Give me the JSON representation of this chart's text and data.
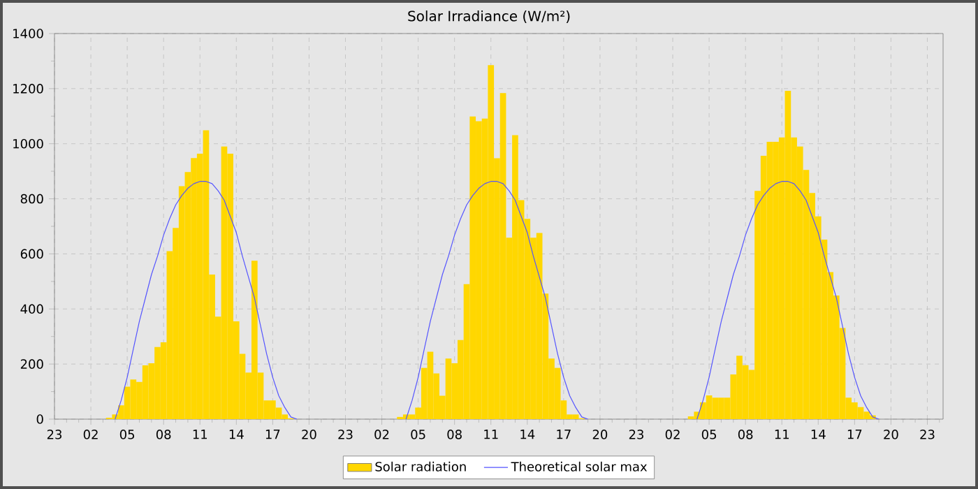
{
  "chart_data": {
    "type": "bar",
    "title": "Solar Irradiance (W/m²)",
    "categories": [
      "23",
      null,
      null,
      null,
      null,
      null,
      "02",
      null,
      null,
      null,
      null,
      null,
      "05",
      null,
      null,
      null,
      null,
      null,
      "08",
      null,
      null,
      null,
      null,
      null,
      "11",
      null,
      null,
      null,
      null,
      null,
      "14",
      null,
      null,
      null,
      null,
      null,
      "17",
      null,
      null,
      null,
      null,
      null,
      "20",
      null,
      null,
      null,
      null,
      null,
      "23",
      null,
      null,
      null,
      null,
      null,
      "02",
      null,
      null,
      null,
      null,
      null,
      "05",
      null,
      null,
      null,
      null,
      null,
      "08",
      null,
      null,
      null,
      null,
      null,
      "11",
      null,
      null,
      null,
      null,
      null,
      "14",
      null,
      null,
      null,
      null,
      null,
      "17",
      null,
      null,
      null,
      null,
      null,
      "20",
      null,
      null,
      null,
      null,
      null,
      "23",
      null,
      null,
      null,
      null,
      null,
      "02",
      null,
      null,
      null,
      null,
      null,
      "05",
      null,
      null,
      null,
      null,
      null,
      "08",
      null,
      null,
      null,
      null,
      null,
      "11",
      null,
      null,
      null,
      null,
      null,
      "14",
      null,
      null,
      null,
      null,
      null,
      "17",
      null,
      null,
      null,
      null,
      null,
      "20",
      null,
      null,
      null,
      null,
      null,
      "23",
      null,
      null
    ],
    "series": [
      {
        "name": "Solar radiation",
        "color": "#ffd700",
        "values": [
          null,
          null,
          null,
          null,
          null,
          null,
          null,
          null,
          null,
          5,
          17,
          50,
          118,
          144,
          135,
          195,
          203,
          262,
          279,
          610,
          694,
          846,
          897,
          948,
          964,
          1049,
          525,
          372,
          990,
          964,
          355,
          237,
          169,
          575,
          169,
          68,
          68,
          42,
          17,
          3,
          null,
          null,
          null,
          null,
          null,
          null,
          null,
          null,
          null,
          null,
          null,
          null,
          null,
          null,
          null,
          null,
          null,
          8,
          17,
          17,
          42,
          186,
          245,
          166,
          85,
          220,
          203,
          287,
          490,
          1099,
          1082,
          1091,
          1285,
          947,
          1184,
          659,
          1031,
          795,
          727,
          659,
          676,
          456,
          220,
          186,
          68,
          17,
          17,
          3,
          null,
          null,
          null,
          null,
          null,
          null,
          null,
          null,
          null,
          null,
          null,
          null,
          null,
          null,
          null,
          null,
          null,
          10,
          27,
          61,
          86,
          78,
          78,
          78,
          162,
          230,
          196,
          179,
          829,
          956,
          1007,
          1007,
          1023,
          1192,
          1023,
          990,
          905,
          821,
          736,
          652,
          534,
          449,
          331,
          78,
          61,
          44,
          27,
          14,
          null,
          null,
          null,
          null,
          null,
          null,
          null,
          null,
          null,
          null,
          null
        ]
      },
      {
        "name": "Theoretical solar max",
        "type": "line",
        "color": "#5555ff",
        "values": [
          null,
          null,
          null,
          null,
          null,
          null,
          null,
          null,
          null,
          null,
          0,
          68,
          152,
          254,
          355,
          440,
          525,
          592,
          668,
          728,
          778,
          812,
          838,
          855,
          863,
          863,
          855,
          829,
          795,
          736,
          677,
          592,
          516,
          440,
          338,
          237,
          152,
          85,
          42,
          8,
          0,
          null,
          null,
          null,
          null,
          null,
          null,
          null,
          null,
          null,
          null,
          null,
          null,
          null,
          null,
          null,
          null,
          null,
          0,
          68,
          152,
          254,
          355,
          440,
          525,
          592,
          668,
          728,
          778,
          812,
          838,
          855,
          863,
          863,
          855,
          829,
          795,
          736,
          677,
          592,
          516,
          440,
          338,
          237,
          152,
          85,
          42,
          8,
          0,
          null,
          null,
          null,
          null,
          null,
          null,
          null,
          null,
          null,
          null,
          null,
          null,
          null,
          null,
          null,
          null,
          null,
          0,
          68,
          152,
          254,
          355,
          440,
          525,
          592,
          668,
          728,
          778,
          812,
          838,
          855,
          863,
          863,
          855,
          829,
          795,
          736,
          677,
          592,
          516,
          440,
          338,
          237,
          152,
          85,
          42,
          8,
          0,
          null,
          null,
          null,
          null,
          null,
          null,
          null,
          null,
          null,
          null
        ]
      }
    ],
    "ylim": [
      0,
      1400
    ],
    "yticks": [
      0,
      {
        "value": 100,
        "label": null
      },
      200,
      {
        "value": 300,
        "label": null
      },
      400,
      {
        "value": 500,
        "label": null
      },
      600,
      {
        "value": 700,
        "label": null
      },
      800,
      {
        "value": 900,
        "label": null
      },
      1000,
      {
        "value": 1100,
        "label": null
      },
      1200,
      {
        "value": 1300,
        "label": null
      },
      1400
    ],
    "grid": true,
    "legend": "bottom"
  }
}
